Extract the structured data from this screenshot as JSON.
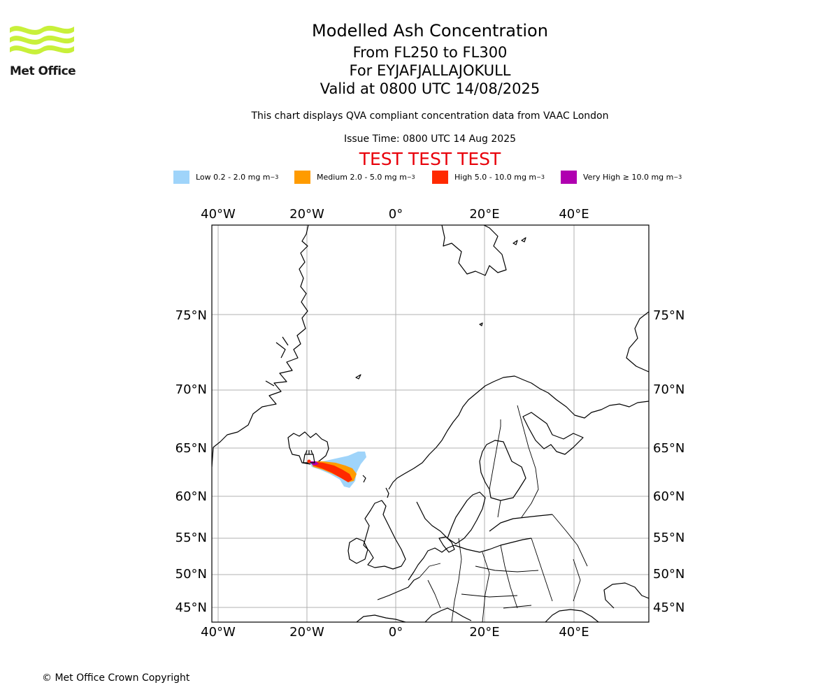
{
  "header": {
    "logo_text": "Met Office",
    "title": "Modelled Ash Concentration",
    "level": "From FL250 to FL300",
    "volcano": "For EYJAFJALLAJOKULL",
    "valid": "Valid at 0800 UTC 14/08/2025",
    "description": "This chart displays QVA compliant concentration data from VAAC London",
    "issue_time": "Issue Time: 0800 UTC 14 Aug 2025",
    "test_banner": "TEST TEST TEST"
  },
  "legend": [
    {
      "label": "Low 0.2 - 2.0 mg m",
      "sup": "−3",
      "color": "#9fd4fa"
    },
    {
      "label": "Medium 2.0 - 5.0 mg m",
      "sup": "−3",
      "color": "#ff9b00"
    },
    {
      "label": "High 5.0 - 10.0 mg m",
      "sup": "−3",
      "color": "#ff2a00"
    },
    {
      "label": "Very High ≥ 10.0 mg m",
      "sup": "−3",
      "color": "#b000b0"
    }
  ],
  "map": {
    "longitude_labels": [
      "40°W",
      "20°W",
      "0°",
      "20°E",
      "40°E"
    ],
    "latitude_labels": [
      "75°N",
      "70°N",
      "65°N",
      "60°N",
      "55°N",
      "50°N",
      "45°N"
    ],
    "gridlines": true
  },
  "footer": {
    "copyright": "© Met Office Crown Copyright"
  }
}
